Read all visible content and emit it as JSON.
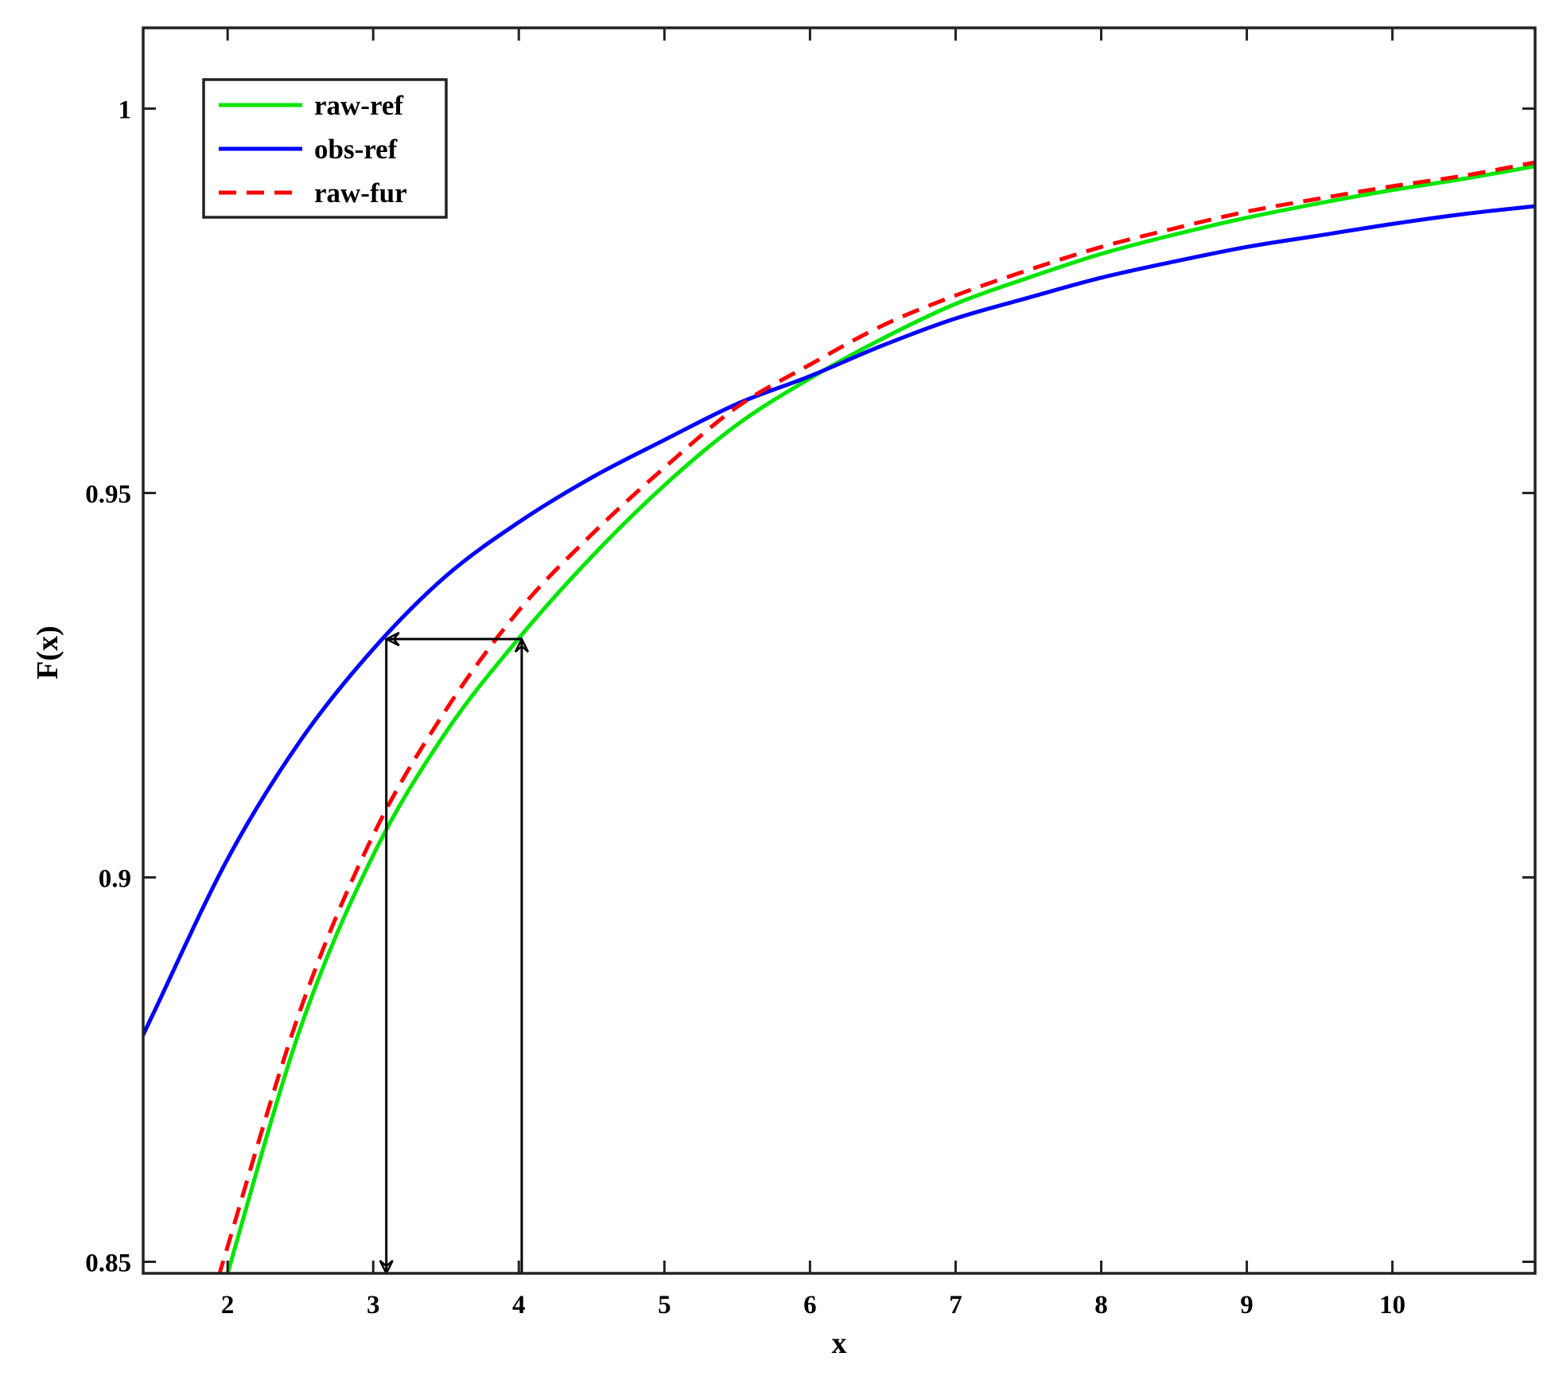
{
  "chart_data": {
    "type": "line",
    "title": "",
    "xlabel": "x",
    "ylabel": "F(x)",
    "xlim": [
      1.42,
      10.98
    ],
    "ylim": [
      0.8485,
      1.0105
    ],
    "x_ticks": [
      2,
      3,
      4,
      5,
      6,
      7,
      8,
      9,
      10
    ],
    "y_ticks": [
      0.85,
      0.9,
      0.95,
      1
    ],
    "x_tick_labels": [
      "2",
      "3",
      "4",
      "5",
      "6",
      "7",
      "8",
      "9",
      "10"
    ],
    "y_tick_labels": [
      "0.85",
      "0.9",
      "0.95",
      "1"
    ],
    "grid": false,
    "legend": {
      "placement": "top-left",
      "entries": [
        "raw-ref",
        "obs-ref",
        "raw-fur"
      ]
    },
    "series": [
      {
        "name": "raw-ref",
        "color": "#00e600",
        "style": "solid",
        "x": [
          2.0,
          2.5,
          3.0,
          3.5,
          4.0,
          4.5,
          5.0,
          5.5,
          6.0,
          6.5,
          7.0,
          7.5,
          8.0,
          8.5,
          9.0,
          9.5,
          10.0,
          10.5,
          10.98
        ],
        "y": [
          0.8485,
          0.8804,
          0.9029,
          0.9189,
          0.9311,
          0.9417,
          0.951,
          0.9589,
          0.9649,
          0.9701,
          0.9746,
          0.978,
          0.9811,
          0.9836,
          0.9858,
          0.9877,
          0.9894,
          0.9909,
          0.9925
        ]
      },
      {
        "name": "obs-ref",
        "color": "#0000ff",
        "style": "solid",
        "x": [
          1.42,
          1.5,
          2.0,
          2.5,
          3.0,
          3.5,
          4.0,
          4.5,
          5.0,
          5.5,
          6.0,
          6.5,
          7.0,
          7.5,
          8.0,
          8.5,
          9.0,
          9.5,
          10.0,
          10.5,
          10.98
        ],
        "y": [
          0.8795,
          0.8827,
          0.9024,
          0.9178,
          0.9297,
          0.9392,
          0.9462,
          0.952,
          0.9569,
          0.9616,
          0.9652,
          0.9692,
          0.9727,
          0.9754,
          0.978,
          0.9801,
          0.982,
          0.9835,
          0.985,
          0.9863,
          0.9873
        ]
      },
      {
        "name": "raw-fur",
        "color": "#ff0000",
        "style": "dashed",
        "x": [
          1.95,
          2.0,
          2.5,
          3.0,
          3.5,
          4.0,
          4.5,
          5.0,
          5.5,
          6.0,
          6.5,
          7.0,
          7.5,
          8.0,
          8.5,
          9.0,
          9.5,
          10.0,
          10.5,
          10.98
        ],
        "y": [
          0.8485,
          0.852,
          0.8828,
          0.9055,
          0.9218,
          0.9347,
          0.9446,
          0.9533,
          0.9612,
          0.9667,
          0.9718,
          0.9757,
          0.979,
          0.982,
          0.9844,
          0.9866,
          0.9883,
          0.9899,
          0.9913,
          0.993
        ]
      }
    ],
    "annotations": [
      {
        "type": "arrow",
        "from": [
          4.02,
          0.8485
        ],
        "to": [
          4.02,
          0.931
        ]
      },
      {
        "type": "arrow",
        "from": [
          4.02,
          0.931
        ],
        "to": [
          3.09,
          0.931
        ]
      },
      {
        "type": "arrow",
        "from": [
          3.09,
          0.931
        ],
        "to": [
          3.09,
          0.8485
        ]
      }
    ]
  }
}
